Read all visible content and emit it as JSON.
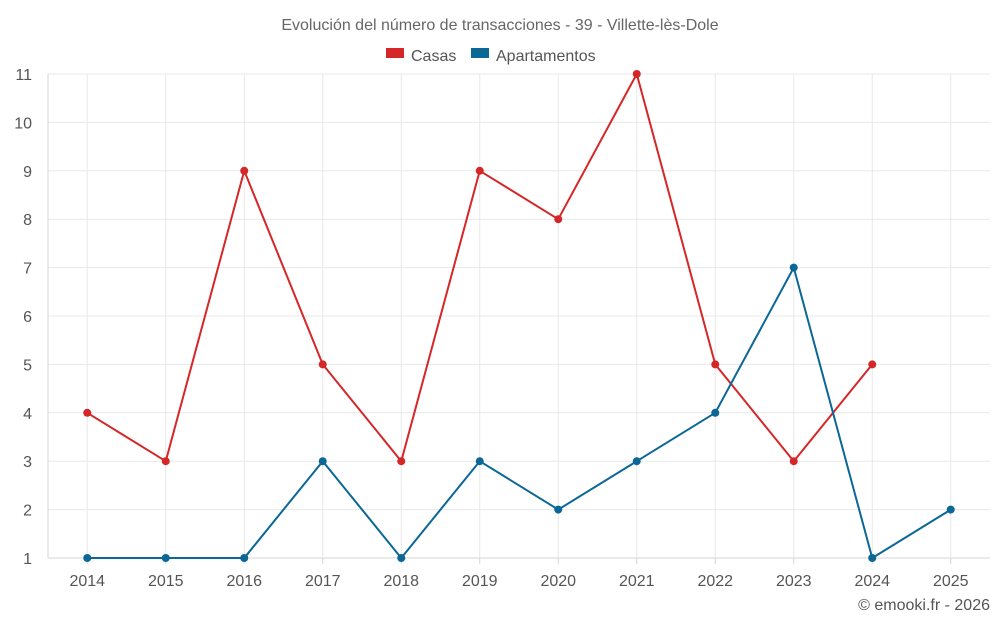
{
  "colors": {
    "houses": "#d62728",
    "apartments": "#0b6796"
  },
  "credit": "© emooki.fr - 2026",
  "chart_data": {
    "type": "line",
    "title": "Evolución del número de transacciones - 39 - Villette-lès-Dole",
    "xlabel": "",
    "ylabel": "",
    "categories": [
      "2014",
      "2015",
      "2016",
      "2017",
      "2018",
      "2019",
      "2020",
      "2021",
      "2022",
      "2023",
      "2024",
      "2025"
    ],
    "ylim": [
      1,
      11
    ],
    "y_ticks": [
      "1",
      "2",
      "3",
      "4",
      "5",
      "6",
      "7",
      "8",
      "9",
      "10",
      "11"
    ],
    "grid": true,
    "legend_position": "top-center",
    "series": [
      {
        "name": "Casas",
        "color": "#d62728",
        "values": [
          4,
          3,
          9,
          5,
          3,
          9,
          8,
          11,
          5,
          3,
          5,
          null
        ]
      },
      {
        "name": "Apartamentos",
        "color": "#0b6796",
        "values": [
          1,
          1,
          1,
          3,
          1,
          3,
          2,
          3,
          4,
          7,
          1,
          2
        ]
      }
    ]
  }
}
